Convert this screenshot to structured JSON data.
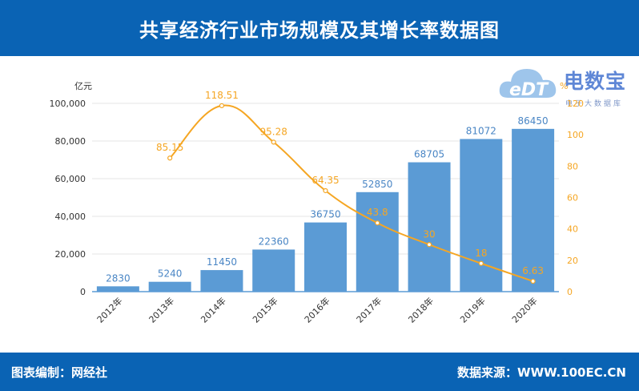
{
  "header": {
    "title": "共享经济行业市场规模及其增长率数据图"
  },
  "footer": {
    "editor": "图表编制：网经社",
    "source": "数据来源：WWW.100EC.CN"
  },
  "logo": {
    "main": "电数宝",
    "sub": "电子大数据库"
  },
  "colors": {
    "header_bg": "#0a63b4",
    "bar": "#5b9bd5",
    "line": "#f5a623",
    "bar_label": "#4a86c5"
  },
  "chart_data": {
    "type": "bar",
    "categories": [
      "2012年",
      "2013年",
      "2014年",
      "2015年",
      "2016年",
      "2017年",
      "2018年",
      "2019年",
      "2020年"
    ],
    "series": [
      {
        "type": "bar",
        "axis": "left",
        "values": [
          2830,
          5240,
          11450,
          22360,
          36750,
          52850,
          68705,
          81072,
          86450
        ]
      },
      {
        "type": "line",
        "axis": "right",
        "values": [
          null,
          85.15,
          118.51,
          95.28,
          64.35,
          43.8,
          30,
          18,
          6.63
        ]
      }
    ],
    "y_left": {
      "unit": "亿元",
      "ticks": [
        "100,000",
        "80,000",
        "60,000",
        "40,000",
        "20,000",
        "0"
      ],
      "range": [
        0,
        100000
      ]
    },
    "y_right": {
      "unit": "%",
      "ticks": [
        "120",
        "100",
        "80",
        "60",
        "40",
        "20",
        "0"
      ],
      "range": [
        0,
        120
      ]
    }
  }
}
